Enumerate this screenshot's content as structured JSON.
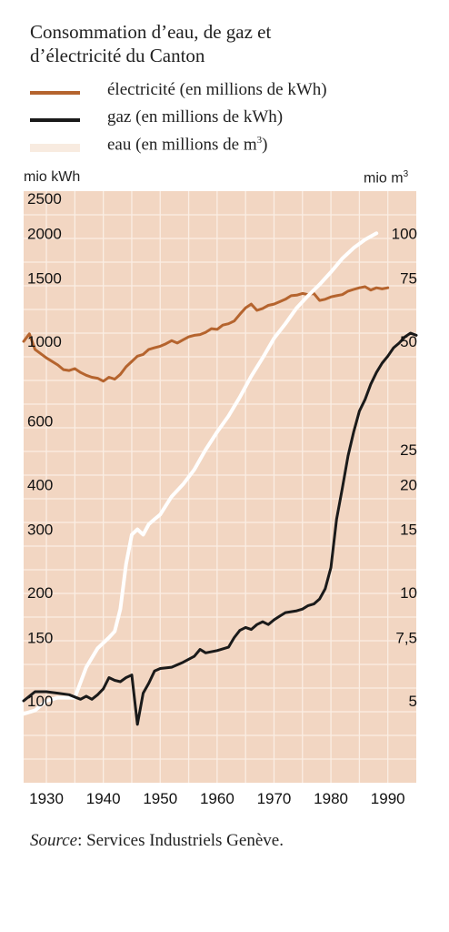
{
  "title_line1": "Consommation d’eau, de gaz et",
  "title_line2": "d’électricité du Canton",
  "legend": [
    {
      "id": "electricite",
      "label": "électricité (en millions de kWh)",
      "sup": "",
      "color": "#b5642e"
    },
    {
      "id": "gaz",
      "label": "gaz (en millions de kWh)",
      "sup": "",
      "color": "#1a1a1a"
    },
    {
      "id": "eau",
      "label": "eau (en millions de m",
      "sup": "3",
      "tail": ")",
      "color": "#f8ebe0"
    }
  ],
  "left_unit": "mio kWh",
  "right_unit_base": "mio m",
  "right_unit_sup": "3",
  "source_label": "Source",
  "source_text": ": Services Industriels Genève.",
  "chart_data": {
    "type": "line",
    "background": "#f2d6c2",
    "grid_color": "#fbeee4",
    "x_ticks": [
      1930,
      1940,
      1950,
      1960,
      1970,
      1980,
      1990
    ],
    "left_ticks": [
      {
        "label": "2500",
        "value": 2500
      },
      {
        "label": "2000",
        "value": 2000
      },
      {
        "label": "1500",
        "value": 1500
      },
      {
        "label": "1000",
        "value": 1000
      },
      {
        "label": "600",
        "value": 600
      },
      {
        "label": "400",
        "value": 400
      },
      {
        "label": "300",
        "value": 300
      },
      {
        "label": "200",
        "value": 200
      },
      {
        "label": "150",
        "value": 150
      },
      {
        "label": "100",
        "value": 100
      }
    ],
    "right_ticks": [
      {
        "label": "100",
        "value": 100
      },
      {
        "label": "75",
        "value": 75
      },
      {
        "label": "50",
        "value": 50
      },
      {
        "label": "25",
        "value": 25
      },
      {
        "label": "20",
        "value": 20
      },
      {
        "label": "15",
        "value": 15
      },
      {
        "label": "10",
        "value": 10
      },
      {
        "label": "7,5",
        "value": 7.5
      },
      {
        "label": "5",
        "value": 5
      }
    ],
    "series": [
      {
        "id": "electricite",
        "axis": "left",
        "color": "#b5642e",
        "width": 3,
        "points": [
          [
            1926,
            1000
          ],
          [
            1927,
            1050
          ],
          [
            1928,
            950
          ],
          [
            1930,
            900
          ],
          [
            1932,
            860
          ],
          [
            1933,
            835
          ],
          [
            1934,
            830
          ],
          [
            1935,
            840
          ],
          [
            1936,
            820
          ],
          [
            1937,
            805
          ],
          [
            1938,
            795
          ],
          [
            1939,
            790
          ],
          [
            1940,
            775
          ],
          [
            1941,
            795
          ],
          [
            1942,
            785
          ],
          [
            1943,
            810
          ],
          [
            1944,
            850
          ],
          [
            1945,
            880
          ],
          [
            1946,
            910
          ],
          [
            1947,
            920
          ],
          [
            1948,
            950
          ],
          [
            1949,
            960
          ],
          [
            1950,
            970
          ],
          [
            1951,
            985
          ],
          [
            1952,
            1005
          ],
          [
            1953,
            990
          ],
          [
            1954,
            1010
          ],
          [
            1955,
            1030
          ],
          [
            1956,
            1040
          ],
          [
            1957,
            1045
          ],
          [
            1958,
            1060
          ],
          [
            1959,
            1085
          ],
          [
            1960,
            1080
          ],
          [
            1961,
            1110
          ],
          [
            1962,
            1120
          ],
          [
            1963,
            1140
          ],
          [
            1964,
            1190
          ],
          [
            1965,
            1240
          ],
          [
            1966,
            1270
          ],
          [
            1967,
            1220
          ],
          [
            1968,
            1235
          ],
          [
            1969,
            1260
          ],
          [
            1970,
            1270
          ],
          [
            1971,
            1290
          ],
          [
            1972,
            1310
          ],
          [
            1973,
            1340
          ],
          [
            1974,
            1345
          ],
          [
            1975,
            1360
          ],
          [
            1976,
            1350
          ],
          [
            1977,
            1360
          ],
          [
            1978,
            1300
          ],
          [
            1979,
            1310
          ],
          [
            1980,
            1330
          ],
          [
            1981,
            1340
          ],
          [
            1982,
            1350
          ],
          [
            1983,
            1380
          ],
          [
            1984,
            1395
          ],
          [
            1985,
            1410
          ],
          [
            1986,
            1420
          ],
          [
            1987,
            1390
          ],
          [
            1988,
            1410
          ],
          [
            1989,
            1400
          ],
          [
            1990,
            1410
          ]
        ]
      },
      {
        "id": "eau",
        "axis": "right",
        "color": "#ffffff",
        "width": 4,
        "points": [
          [
            1926,
            4.6
          ],
          [
            1928,
            4.7
          ],
          [
            1930,
            5.0
          ],
          [
            1932,
            5.1
          ],
          [
            1935,
            5.1
          ],
          [
            1937,
            6.2
          ],
          [
            1939,
            7.0
          ],
          [
            1941,
            7.5
          ],
          [
            1942,
            7.8
          ],
          [
            1943,
            9.0
          ],
          [
            1944,
            12.0
          ],
          [
            1945,
            14.5
          ],
          [
            1946,
            15.0
          ],
          [
            1947,
            14.5
          ],
          [
            1948,
            15.5
          ],
          [
            1949,
            16.0
          ],
          [
            1950,
            16.5
          ],
          [
            1952,
            18.5
          ],
          [
            1954,
            20.0
          ],
          [
            1956,
            22.0
          ],
          [
            1958,
            25.0
          ],
          [
            1960,
            28.0
          ],
          [
            1962,
            31.0
          ],
          [
            1964,
            35.0
          ],
          [
            1966,
            40.0
          ],
          [
            1968,
            45.0
          ],
          [
            1970,
            51.0
          ],
          [
            1972,
            56.0
          ],
          [
            1974,
            62.0
          ],
          [
            1976,
            67.0
          ],
          [
            1978,
            72.0
          ],
          [
            1980,
            78.0
          ],
          [
            1982,
            85.0
          ],
          [
            1984,
            91.0
          ],
          [
            1986,
            96.0
          ],
          [
            1988,
            100.0
          ]
        ]
      },
      {
        "id": "gaz",
        "axis": "left",
        "color": "#1a1a1a",
        "width": 3,
        "points": [
          [
            1926,
            100
          ],
          [
            1928,
            106
          ],
          [
            1930,
            106
          ],
          [
            1932,
            105
          ],
          [
            1934,
            104
          ],
          [
            1936,
            101
          ],
          [
            1937,
            103
          ],
          [
            1938,
            101
          ],
          [
            1939,
            104
          ],
          [
            1940,
            108
          ],
          [
            1941,
            116
          ],
          [
            1942,
            114
          ],
          [
            1943,
            113
          ],
          [
            1944,
            116
          ],
          [
            1945,
            118
          ],
          [
            1946,
            86
          ],
          [
            1947,
            105
          ],
          [
            1948,
            112
          ],
          [
            1949,
            121
          ],
          [
            1950,
            123
          ],
          [
            1952,
            124
          ],
          [
            1954,
            128
          ],
          [
            1956,
            133
          ],
          [
            1957,
            139
          ],
          [
            1958,
            136
          ],
          [
            1960,
            138
          ],
          [
            1962,
            141
          ],
          [
            1963,
            150
          ],
          [
            1964,
            157
          ],
          [
            1965,
            160
          ],
          [
            1966,
            158
          ],
          [
            1967,
            163
          ],
          [
            1968,
            166
          ],
          [
            1969,
            163
          ],
          [
            1970,
            168
          ],
          [
            1971,
            172
          ],
          [
            1972,
            176
          ],
          [
            1973,
            177
          ],
          [
            1974,
            178
          ],
          [
            1975,
            180
          ],
          [
            1976,
            184
          ],
          [
            1977,
            186
          ],
          [
            1978,
            192
          ],
          [
            1979,
            205
          ],
          [
            1980,
            235
          ],
          [
            1981,
            320
          ],
          [
            1982,
            390
          ],
          [
            1983,
            480
          ],
          [
            1984,
            560
          ],
          [
            1985,
            640
          ],
          [
            1986,
            690
          ],
          [
            1987,
            760
          ],
          [
            1988,
            820
          ],
          [
            1989,
            870
          ],
          [
            1990,
            910
          ],
          [
            1991,
            960
          ],
          [
            1992,
            990
          ],
          [
            1993,
            1030
          ],
          [
            1994,
            1055
          ],
          [
            1995,
            1040
          ]
        ]
      }
    ]
  }
}
